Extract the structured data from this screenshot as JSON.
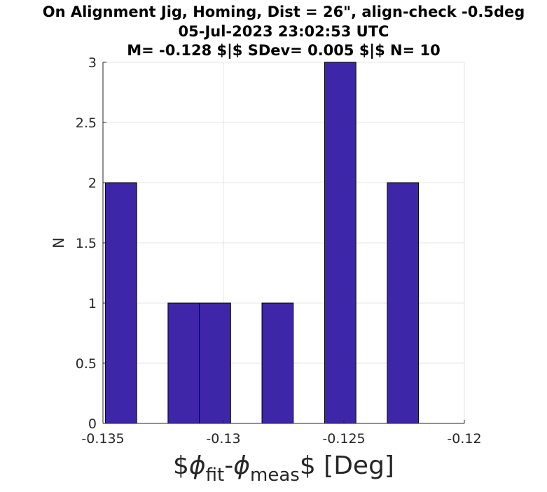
{
  "chart_data": {
    "type": "bar",
    "title": [
      "On Alignment Jig, Homing, Dist = 26\", align-check -0.5deg",
      "05-Jul-2023 23:02:53 UTC",
      "M= -0.128 $|$ SDev= 0.005 $|$ N= 10"
    ],
    "ylabel": "N",
    "xlabel": {
      "prefix": "$",
      "sym1": "ϕ",
      "sub1": "fit",
      "dash": "-",
      "sym2": "ϕ",
      "sub2": "meas",
      "suffix": "$ [Deg]"
    },
    "xlim": [
      -0.135,
      -0.12
    ],
    "ylim": [
      0,
      3
    ],
    "xticks": [
      -0.135,
      -0.13,
      -0.125,
      -0.12
    ],
    "xtick_labels": [
      "-0.135",
      "-0.13",
      "-0.125",
      "-0.12"
    ],
    "yticks": [
      0,
      0.5,
      1,
      1.5,
      2,
      2.5,
      3
    ],
    "ytick_labels": [
      "0",
      "0.5",
      "1",
      "1.5",
      "2",
      "2.5",
      "3"
    ],
    "bins": [
      {
        "start": -0.1349,
        "end": -0.1336,
        "count": 2
      },
      {
        "start": -0.1323,
        "end": -0.131,
        "count": 1
      },
      {
        "start": -0.131,
        "end": -0.1297,
        "count": 1
      },
      {
        "start": -0.1284,
        "end": -0.1271,
        "count": 1
      },
      {
        "start": -0.1258,
        "end": -0.1245,
        "count": 3
      },
      {
        "start": -0.1232,
        "end": -0.1219,
        "count": 2
      }
    ],
    "grid": true,
    "bar_color": "#3e26a8",
    "edge_color": "#000000",
    "grid_color": "#e6e6e6",
    "axis_color": "#262626"
  }
}
